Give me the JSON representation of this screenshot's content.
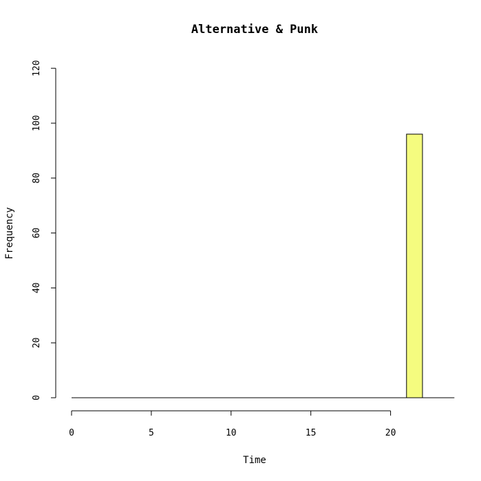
{
  "chart_data": {
    "type": "bar",
    "title": "Alternative & Punk",
    "xlabel": "Time",
    "ylabel": "Frequency",
    "xlim": [
      0,
      24
    ],
    "ylim": [
      0,
      120
    ],
    "x_ticks": [
      0,
      5,
      10,
      15,
      20
    ],
    "y_ticks": [
      0,
      20,
      40,
      60,
      80,
      100,
      120
    ],
    "bins": [
      {
        "from": 0,
        "to": 21,
        "value": 0
      },
      {
        "from": 21,
        "to": 22,
        "value": 96
      }
    ],
    "bar_color": "#f5fc7f",
    "grid": false
  }
}
